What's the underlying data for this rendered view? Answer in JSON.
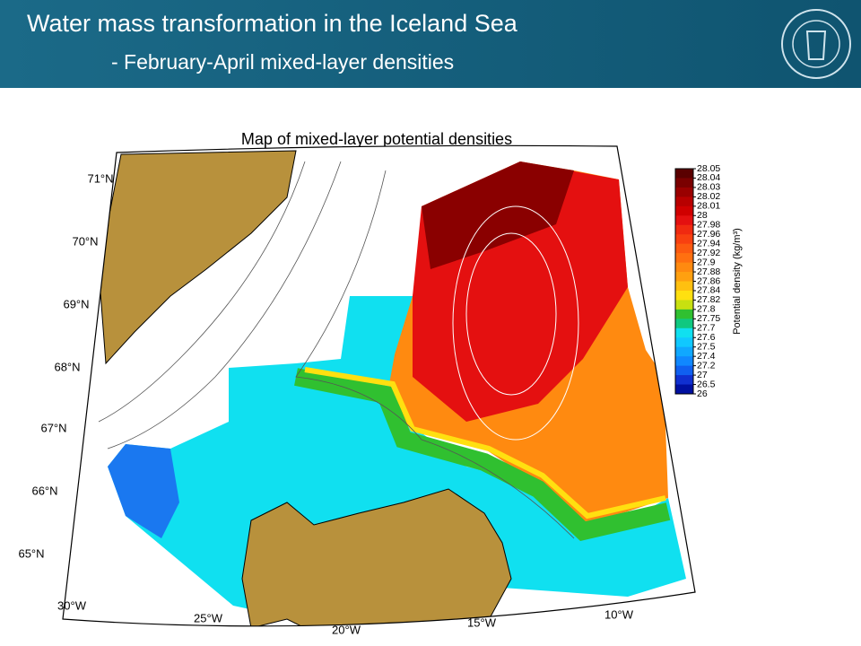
{
  "header": {
    "title": "Water mass transformation in the Iceland Sea",
    "subtitle": "- February-April mixed-layer densities"
  },
  "map": {
    "title": "Map of mixed-layer potential densities",
    "lat_labels": [
      "71°N",
      "70°N",
      "69°N",
      "68°N",
      "67°N",
      "66°N",
      "65°N"
    ],
    "lon_labels": [
      "30°W",
      "25°W",
      "20°W",
      "15°W",
      "10°W"
    ]
  },
  "colorbar": {
    "label": "Potential density (kg/m³)",
    "ticks": [
      28.05,
      28.04,
      28.03,
      28.02,
      28.01,
      28,
      27.98,
      27.96,
      27.94,
      27.92,
      27.9,
      27.88,
      27.86,
      27.84,
      27.82,
      27.8,
      27.75,
      27.7,
      27.6,
      27.5,
      27.4,
      27.2,
      27,
      26.5,
      26
    ],
    "colors": [
      "#5a0000",
      "#7a0000",
      "#9a0000",
      "#b80000",
      "#d00000",
      "#e41010",
      "#f02a10",
      "#f84010",
      "#fc5a10",
      "#ff7010",
      "#ff8a10",
      "#ffa010",
      "#ffc010",
      "#ffe010",
      "#c8e010",
      "#30c030",
      "#10c880",
      "#10e0f0",
      "#10c8ff",
      "#10a8ff",
      "#1088ff",
      "#1060f0",
      "#1030d0",
      "#0010a0"
    ]
  }
}
